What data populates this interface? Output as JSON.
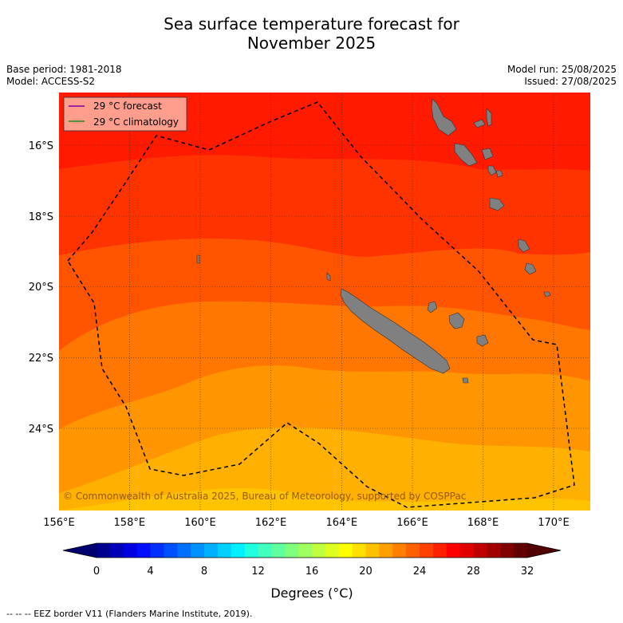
{
  "title_line1": "Sea surface temperature forecast for",
  "title_line2": "November 2025",
  "left_meta": [
    "Base period: 1981-2018",
    "Model: ACCESS-S2"
  ],
  "right_meta": [
    "Model run: 25/08/2025",
    "Issued: 27/08/2025"
  ],
  "legend": [
    {
      "label": "29 °C  forecast",
      "color": "#7b00a8"
    },
    {
      "label": "29 °C  climatology",
      "color": "#1f8a1f"
    }
  ],
  "copyright": "© Commonwealth of Australia 2025, Bureau of Meteorology, supported by COSPPac",
  "lon_ticks": [
    "156°E",
    "158°E",
    "160°E",
    "162°E",
    "164°E",
    "166°E",
    "168°E",
    "170°E"
  ],
  "lat_ticks": [
    "16°S",
    "18°S",
    "20°S",
    "22°S",
    "24°S"
  ],
  "lon_values": [
    156,
    158,
    160,
    162,
    164,
    166,
    168,
    170
  ],
  "lat_values": [
    -16,
    -18,
    -20,
    -22,
    -24
  ],
  "colorbar": {
    "ticks": [
      "0",
      "4",
      "8",
      "12",
      "16",
      "20",
      "24",
      "28",
      "32"
    ],
    "title": "Degrees ($^{\\circ}$C)",
    "display_title": "Degrees (°C)",
    "min": 0,
    "max": 32,
    "colors": [
      "#00008f",
      "#0000b8",
      "#0000e0",
      "#0010ff",
      "#0030ff",
      "#0050ff",
      "#0070ff",
      "#0090ff",
      "#00b0ff",
      "#00d0ff",
      "#00f0ff",
      "#20ffdf",
      "#40ffbf",
      "#60ff9f",
      "#80ff7f",
      "#9fff60",
      "#bfff40",
      "#dfff20",
      "#ffff00",
      "#ffe000",
      "#ffc000",
      "#ffa000",
      "#ff8000",
      "#ff6000",
      "#ff4000",
      "#ff2000",
      "#ff0000",
      "#e00000",
      "#c00000",
      "#a00000",
      "#800000",
      "#600000"
    ]
  },
  "sst_bands_colors": [
    "#ff1a00",
    "#ff3300",
    "#ff5500",
    "#ff7700",
    "#ff9500",
    "#ffb000"
  ],
  "footer": "--  --  -- EEZ border V11 (Flanders Marine Institute, 2019)."
}
